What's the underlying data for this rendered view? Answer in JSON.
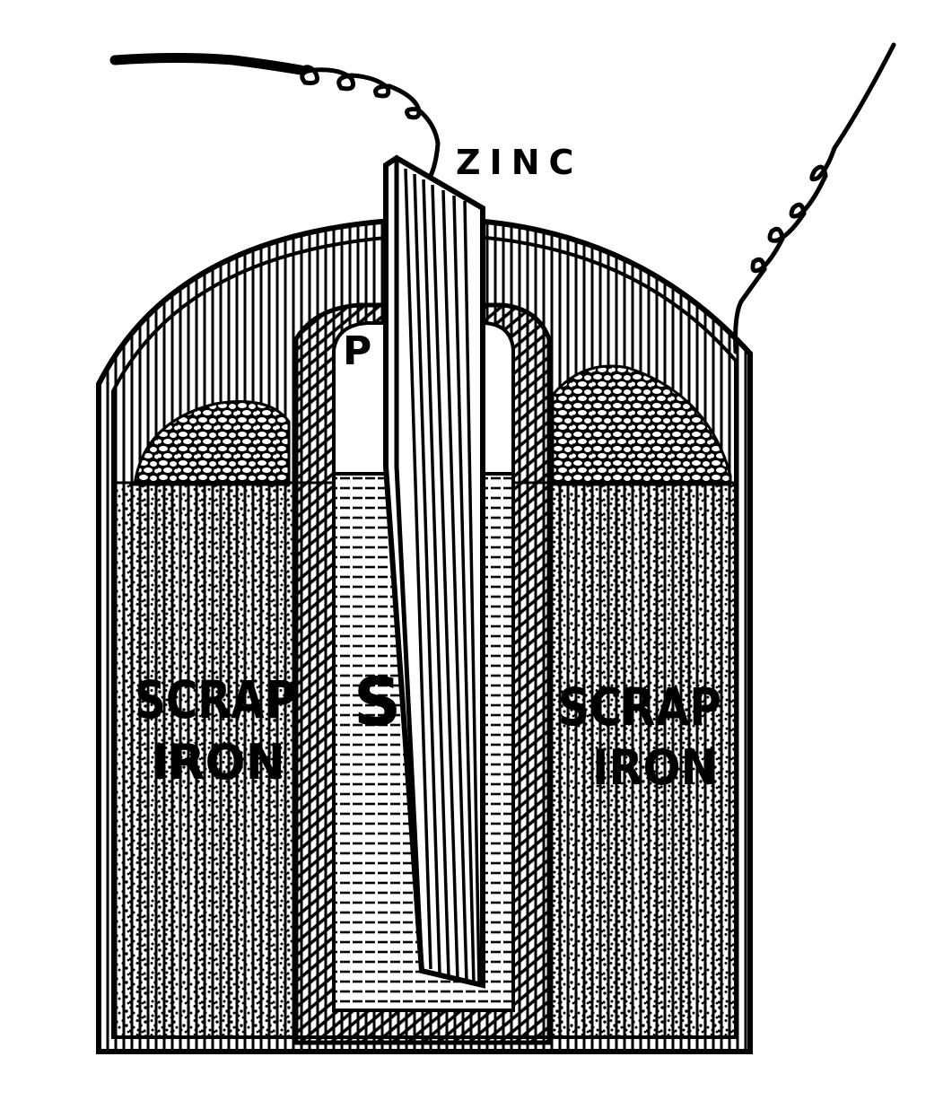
{
  "figure": {
    "labels": {
      "zinc": "ZINC",
      "porous_cup": "P",
      "solution": "S",
      "scrap_left_line1": "SCRAP",
      "scrap_left_line2": "IRON",
      "scrap_right_line1": "SCRAP",
      "scrap_right_line2": "IRON"
    },
    "colors": {
      "ink": "#000000",
      "paper": "#ffffff"
    }
  }
}
